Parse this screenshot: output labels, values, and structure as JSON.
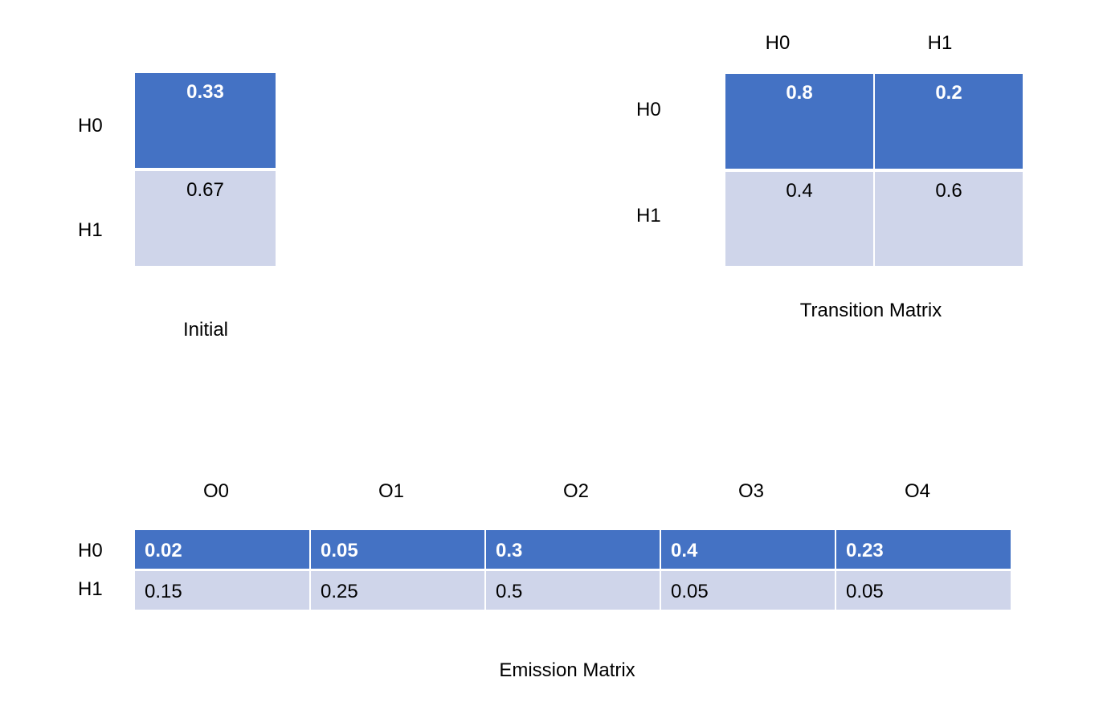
{
  "colors": {
    "dark_fill": "#4472c4",
    "light_fill": "#cfd5ea"
  },
  "initial": {
    "caption": "Initial",
    "rows": [
      {
        "label": "H0",
        "value": "0.33"
      },
      {
        "label": "H1",
        "value": "0.67"
      }
    ]
  },
  "transition": {
    "caption": "Transition Matrix",
    "col_headers": [
      "H0",
      "H1"
    ],
    "row_labels": [
      "H0",
      "H1"
    ],
    "values": [
      [
        "0.8",
        "0.2"
      ],
      [
        "0.4",
        "0.6"
      ]
    ]
  },
  "emission": {
    "caption": "Emission Matrix",
    "col_headers": [
      "O0",
      "O1",
      "O2",
      "O3",
      "O4"
    ],
    "row_labels": [
      "H0",
      "H1"
    ],
    "values": [
      [
        "0.02",
        "0.05",
        "0.3",
        "0.4",
        "0.23"
      ],
      [
        "0.15",
        "0.25",
        "0.5",
        "0.05",
        "0.05"
      ]
    ]
  }
}
